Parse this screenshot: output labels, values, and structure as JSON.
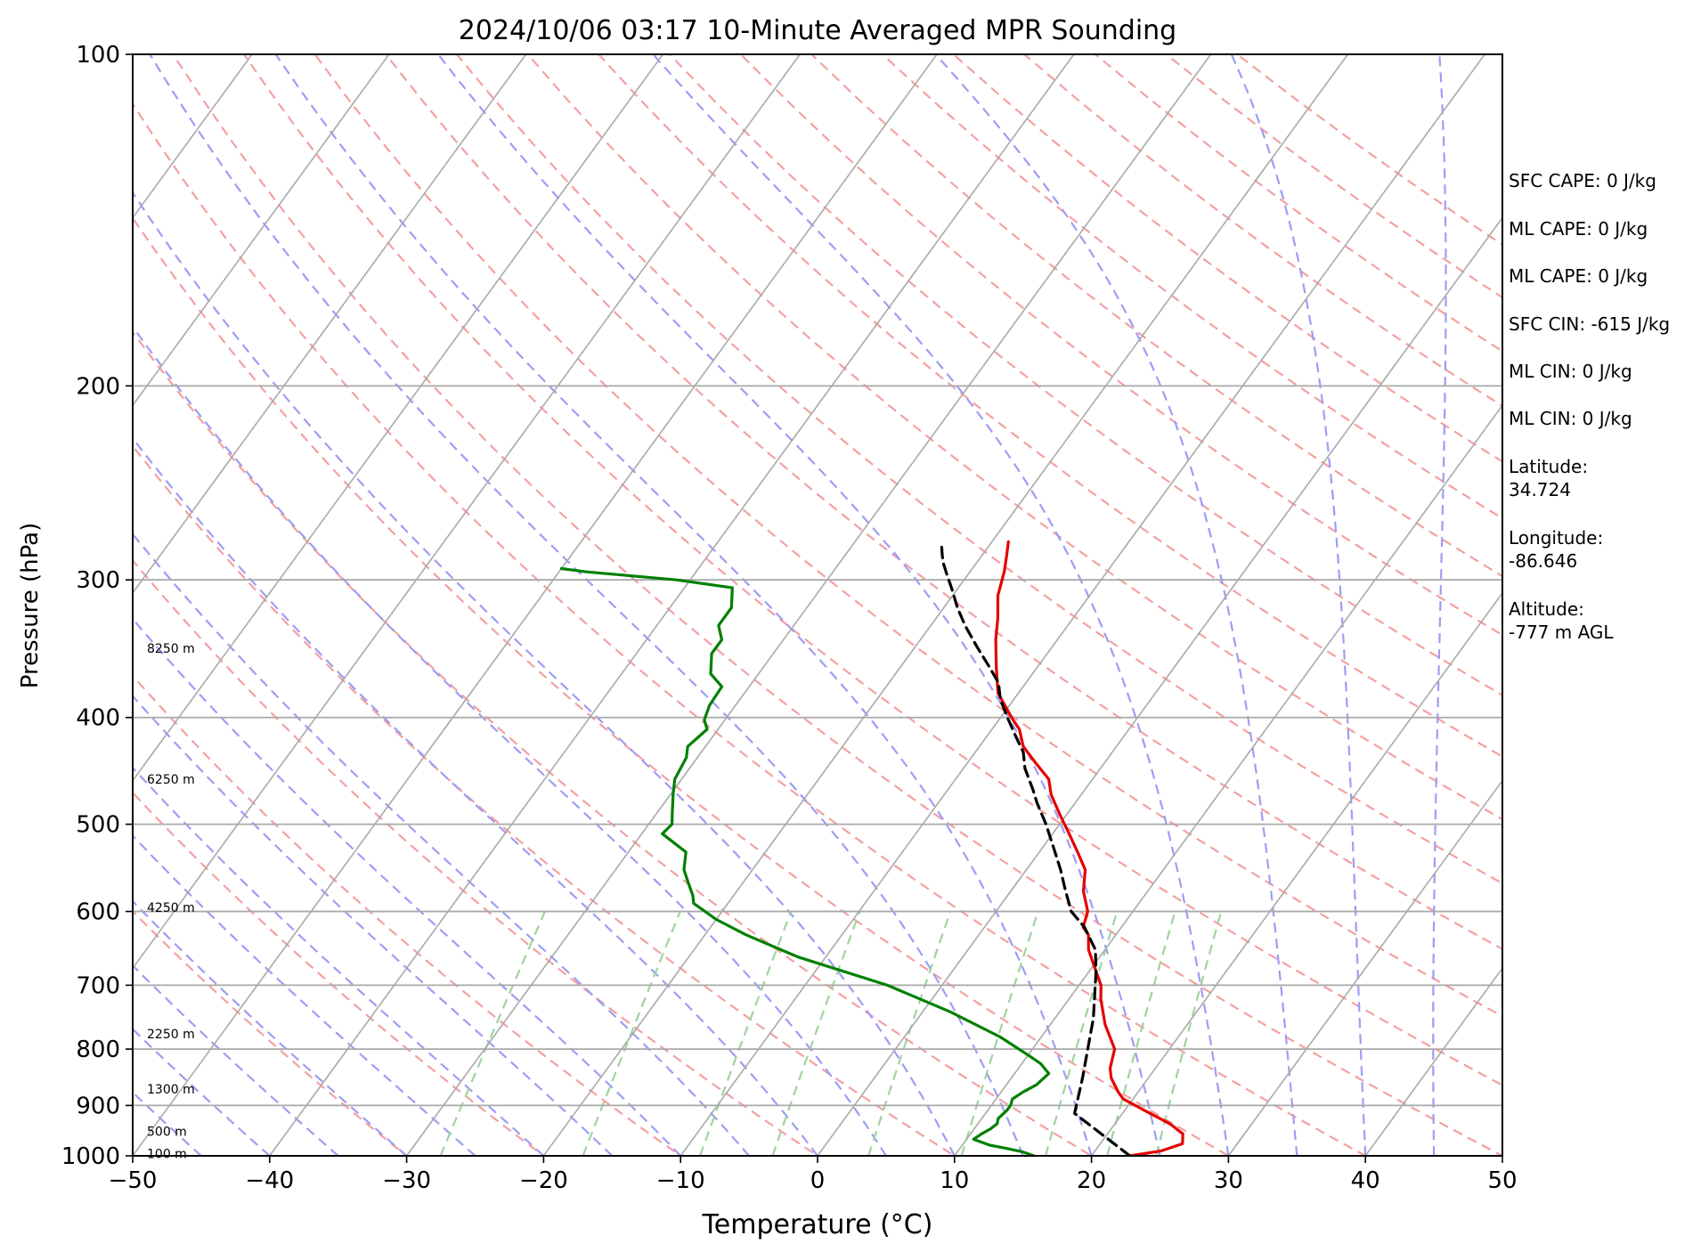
{
  "chart_data": {
    "type": "skew-t log-p sounding",
    "title": "2024/10/06 03:17 10-Minute Averaged MPR Sounding",
    "xlabel": "Temperature (°C)",
    "ylabel": "Pressure (hPa)",
    "xlim": [
      -50,
      50
    ],
    "ylim": [
      1000,
      100
    ],
    "y_scale": "log",
    "x_ticks": [
      -50,
      -40,
      -30,
      -20,
      -10,
      0,
      10,
      20,
      30,
      40,
      50
    ],
    "y_ticks": [
      100,
      200,
      300,
      400,
      500,
      600,
      700,
      800,
      900,
      1000
    ],
    "grid": "horizontal lines at pressure ticks",
    "reference_lines": {
      "isotherms": {
        "color": "#a9a9a9",
        "style": "solid"
      },
      "dry_adiabats": {
        "color": "#f4a0a0",
        "style": "dashed"
      },
      "moist_adiabats": {
        "color": "#9d9df5",
        "style": "dashed"
      },
      "mixing_ratio_lines": {
        "color": "#9ed49e",
        "style": "dashed"
      }
    },
    "series": [
      {
        "color": "#e60000",
        "style": "solid",
        "points": [
          [
            22.8,
            1000
          ],
          [
            24.8,
            990
          ],
          [
            26.0,
            975
          ],
          [
            25.5,
            955
          ],
          [
            24.0,
            935
          ],
          [
            21.5,
            910
          ],
          [
            19.3,
            888
          ],
          [
            18.6,
            876
          ],
          [
            17.8,
            860
          ],
          [
            17.3,
            850
          ],
          [
            16.7,
            833
          ],
          [
            16.0,
            800
          ],
          [
            14.0,
            760
          ],
          [
            12.3,
            720
          ],
          [
            11.6,
            700
          ],
          [
            10.5,
            680
          ],
          [
            8.8,
            650
          ],
          [
            8.0,
            630
          ],
          [
            7.2,
            620
          ],
          [
            6.7,
            600
          ],
          [
            5.3,
            575
          ],
          [
            4.3,
            550
          ],
          [
            2.8,
            530
          ],
          [
            1.2,
            510
          ],
          [
            -0.5,
            490
          ],
          [
            -2.2,
            470
          ],
          [
            -3.2,
            455
          ],
          [
            -5.0,
            440
          ],
          [
            -6.8,
            425
          ],
          [
            -8.0,
            410
          ],
          [
            -9.2,
            400
          ],
          [
            -11.5,
            380
          ],
          [
            -13.0,
            360
          ],
          [
            -14.5,
            340
          ],
          [
            -15.5,
            325
          ],
          [
            -16.7,
            310
          ],
          [
            -17.5,
            295
          ],
          [
            -18.2,
            285
          ],
          [
            -18.8,
            277
          ]
        ]
      },
      {
        "color": "#000000",
        "style": "dashed",
        "points": [
          [
            22.8,
            1000
          ],
          [
            16.5,
            915
          ],
          [
            15.2,
            850
          ],
          [
            12.8,
            750
          ],
          [
            10.5,
            680
          ],
          [
            9.3,
            650
          ],
          [
            7.3,
            620
          ],
          [
            5.5,
            600
          ],
          [
            4.0,
            575
          ],
          [
            2.5,
            550
          ],
          [
            0.8,
            525
          ],
          [
            -1.0,
            500
          ],
          [
            -2.8,
            478
          ],
          [
            -3.8,
            465
          ],
          [
            -5.5,
            445
          ],
          [
            -6.5,
            430
          ],
          [
            -8.0,
            415
          ],
          [
            -9.5,
            400
          ],
          [
            -11.0,
            385
          ],
          [
            -12.0,
            372
          ],
          [
            -13.5,
            360
          ],
          [
            -15.5,
            345
          ],
          [
            -17.5,
            330
          ],
          [
            -19.0,
            318
          ],
          [
            -20.5,
            305
          ],
          [
            -21.5,
            297
          ],
          [
            -22.5,
            289
          ],
          [
            -23.0,
            284
          ],
          [
            -23.6,
            278
          ]
        ]
      },
      {
        "color": "#008000",
        "style": "solid",
        "points": [
          [
            15.8,
            1000
          ],
          [
            14.8,
            992
          ],
          [
            13.5,
            985
          ],
          [
            12.0,
            978
          ],
          [
            10.5,
            966
          ],
          [
            10.8,
            955
          ],
          [
            11.2,
            945
          ],
          [
            11.4,
            935
          ],
          [
            11.2,
            925
          ],
          [
            11.4,
            910
          ],
          [
            11.4,
            900
          ],
          [
            11.2,
            888
          ],
          [
            11.6,
            875
          ],
          [
            12.2,
            862
          ],
          [
            12.3,
            855
          ],
          [
            12.5,
            842
          ],
          [
            11.4,
            825
          ],
          [
            10.0,
            810
          ],
          [
            7.0,
            780
          ],
          [
            2.0,
            740
          ],
          [
            -4.0,
            700
          ],
          [
            -12.0,
            660
          ],
          [
            -17.0,
            630
          ],
          [
            -20.0,
            610
          ],
          [
            -22.5,
            590
          ],
          [
            -23.0,
            580
          ],
          [
            -24.0,
            565
          ],
          [
            -25.0,
            550
          ],
          [
            -25.8,
            530
          ],
          [
            -28.5,
            510
          ],
          [
            -28.3,
            500
          ],
          [
            -28.8,
            490
          ],
          [
            -29.8,
            470
          ],
          [
            -30.5,
            455
          ],
          [
            -30.8,
            435
          ],
          [
            -31.3,
            425
          ],
          [
            -30.8,
            410
          ],
          [
            -31.5,
            402
          ],
          [
            -31.9,
            390
          ],
          [
            -32.0,
            375
          ],
          [
            -33.5,
            365
          ],
          [
            -34.5,
            350
          ],
          [
            -34.5,
            340
          ],
          [
            -35.5,
            330
          ],
          [
            -35.5,
            318
          ],
          [
            -36.5,
            305
          ],
          [
            -41.0,
            300
          ],
          [
            -48.0,
            295
          ],
          [
            -50,
            293
          ]
        ]
      }
    ],
    "height_labels": [
      {
        "text": "100 m",
        "p": 995
      },
      {
        "text": "500 m",
        "p": 950
      },
      {
        "text": "1300 m",
        "p": 870
      },
      {
        "text": "2250 m",
        "p": 775
      },
      {
        "text": "4250 m",
        "p": 595
      },
      {
        "text": "6250 m",
        "p": 455
      },
      {
        "text": "8250 m",
        "p": 346
      }
    ]
  },
  "stats": [
    "SFC CAPE: 0 J/kg",
    "ML CAPE: 0 J/kg",
    "ML CAPE: 0 J/kg",
    "SFC CIN: -615 J/kg",
    "ML CIN: 0 J/kg",
    "ML CIN: 0 J/kg",
    "Latitude:\n34.724",
    "Longitude:\n-86.646",
    "Altitude:\n-777 m AGL"
  ]
}
